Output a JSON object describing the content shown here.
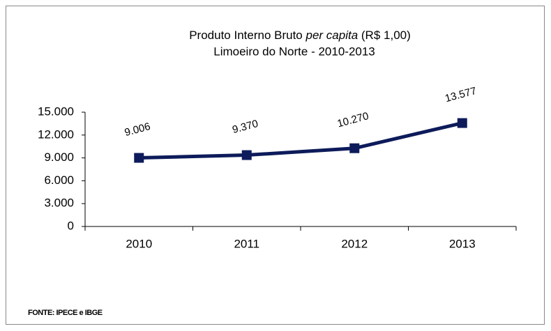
{
  "chart_data": {
    "type": "line",
    "title": [
      "Produto Interno Bruto ",
      "per capita",
      " (R$ 1,00)"
    ],
    "subtitle": "Limoeiro do Norte - 2010-2013",
    "source": "FONTE: IPECE e IBGE",
    "categories": [
      "2010",
      "2011",
      "2012",
      "2013"
    ],
    "series": [
      {
        "color": "#0d1b5a",
        "values": [
          9006,
          9370,
          10270,
          13577
        ],
        "value_labels": [
          "9.006",
          "9.370",
          "10.270",
          "13.577"
        ]
      }
    ],
    "ylim": [
      0,
      15000
    ],
    "yticks": [
      0,
      {
        "value": 3000,
        "label": "3.000"
      },
      {
        "value": 6000,
        "label": "6.000"
      },
      {
        "value": 9000,
        "label": "9.000"
      },
      {
        "value": 12000,
        "label": "12.000"
      },
      {
        "value": 15000,
        "label": "15.000"
      }
    ]
  }
}
